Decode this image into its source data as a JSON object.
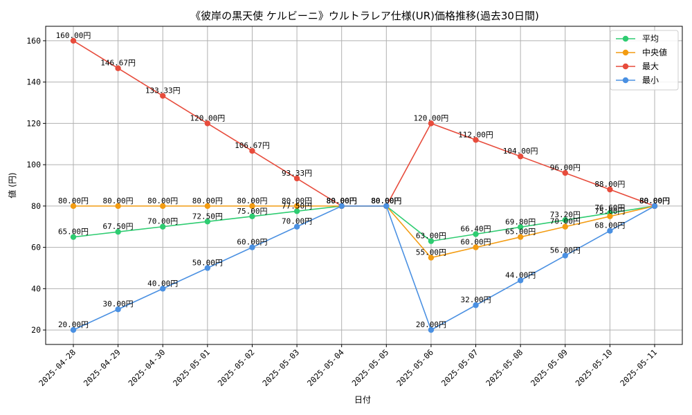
{
  "chart_data": {
    "type": "line",
    "title": "《彼岸の黒天使 ケルビーニ》ウルトラレア仕様(UR)価格推移(過去30日間)",
    "xlabel": "日付",
    "ylabel": "値 (円)",
    "x": [
      "2025-04-28",
      "2025-04-29",
      "2025-04-30",
      "2025-05-01",
      "2025-05-02",
      "2025-05-03",
      "2025-05-04",
      "2025-05-05",
      "2025-05-06",
      "2025-05-07",
      "2025-05-08",
      "2025-05-09",
      "2025-05-10",
      "2025-05-11"
    ],
    "ylim": [
      13,
      167
    ],
    "yticks": [
      20,
      40,
      60,
      80,
      100,
      120,
      140,
      160
    ],
    "grid": true,
    "legend_position": "top-right",
    "label_suffix": "円",
    "series": [
      {
        "name": "平均",
        "color": "#2ecc71",
        "values": [
          65.0,
          67.5,
          70.0,
          72.5,
          75.0,
          77.5,
          80.0,
          80.0,
          63.0,
          66.4,
          69.8,
          73.2,
          76.6,
          80.0
        ]
      },
      {
        "name": "中央値",
        "color": "#f39c12",
        "values": [
          80.0,
          80.0,
          80.0,
          80.0,
          80.0,
          80.0,
          80.0,
          80.0,
          55.0,
          60.0,
          65.0,
          70.0,
          75.0,
          80.0
        ]
      },
      {
        "name": "最大",
        "color": "#e74c3c",
        "values": [
          160.0,
          146.67,
          133.33,
          120.0,
          106.67,
          93.33,
          80.0,
          80.0,
          120.0,
          112.0,
          104.0,
          96.0,
          88.0,
          80.0
        ]
      },
      {
        "name": "最小",
        "color": "#4a90e2",
        "values": [
          20.0,
          30.0,
          40.0,
          50.0,
          60.0,
          70.0,
          80.0,
          80.0,
          20.0,
          32.0,
          44.0,
          56.0,
          68.0,
          80.0
        ]
      }
    ]
  }
}
